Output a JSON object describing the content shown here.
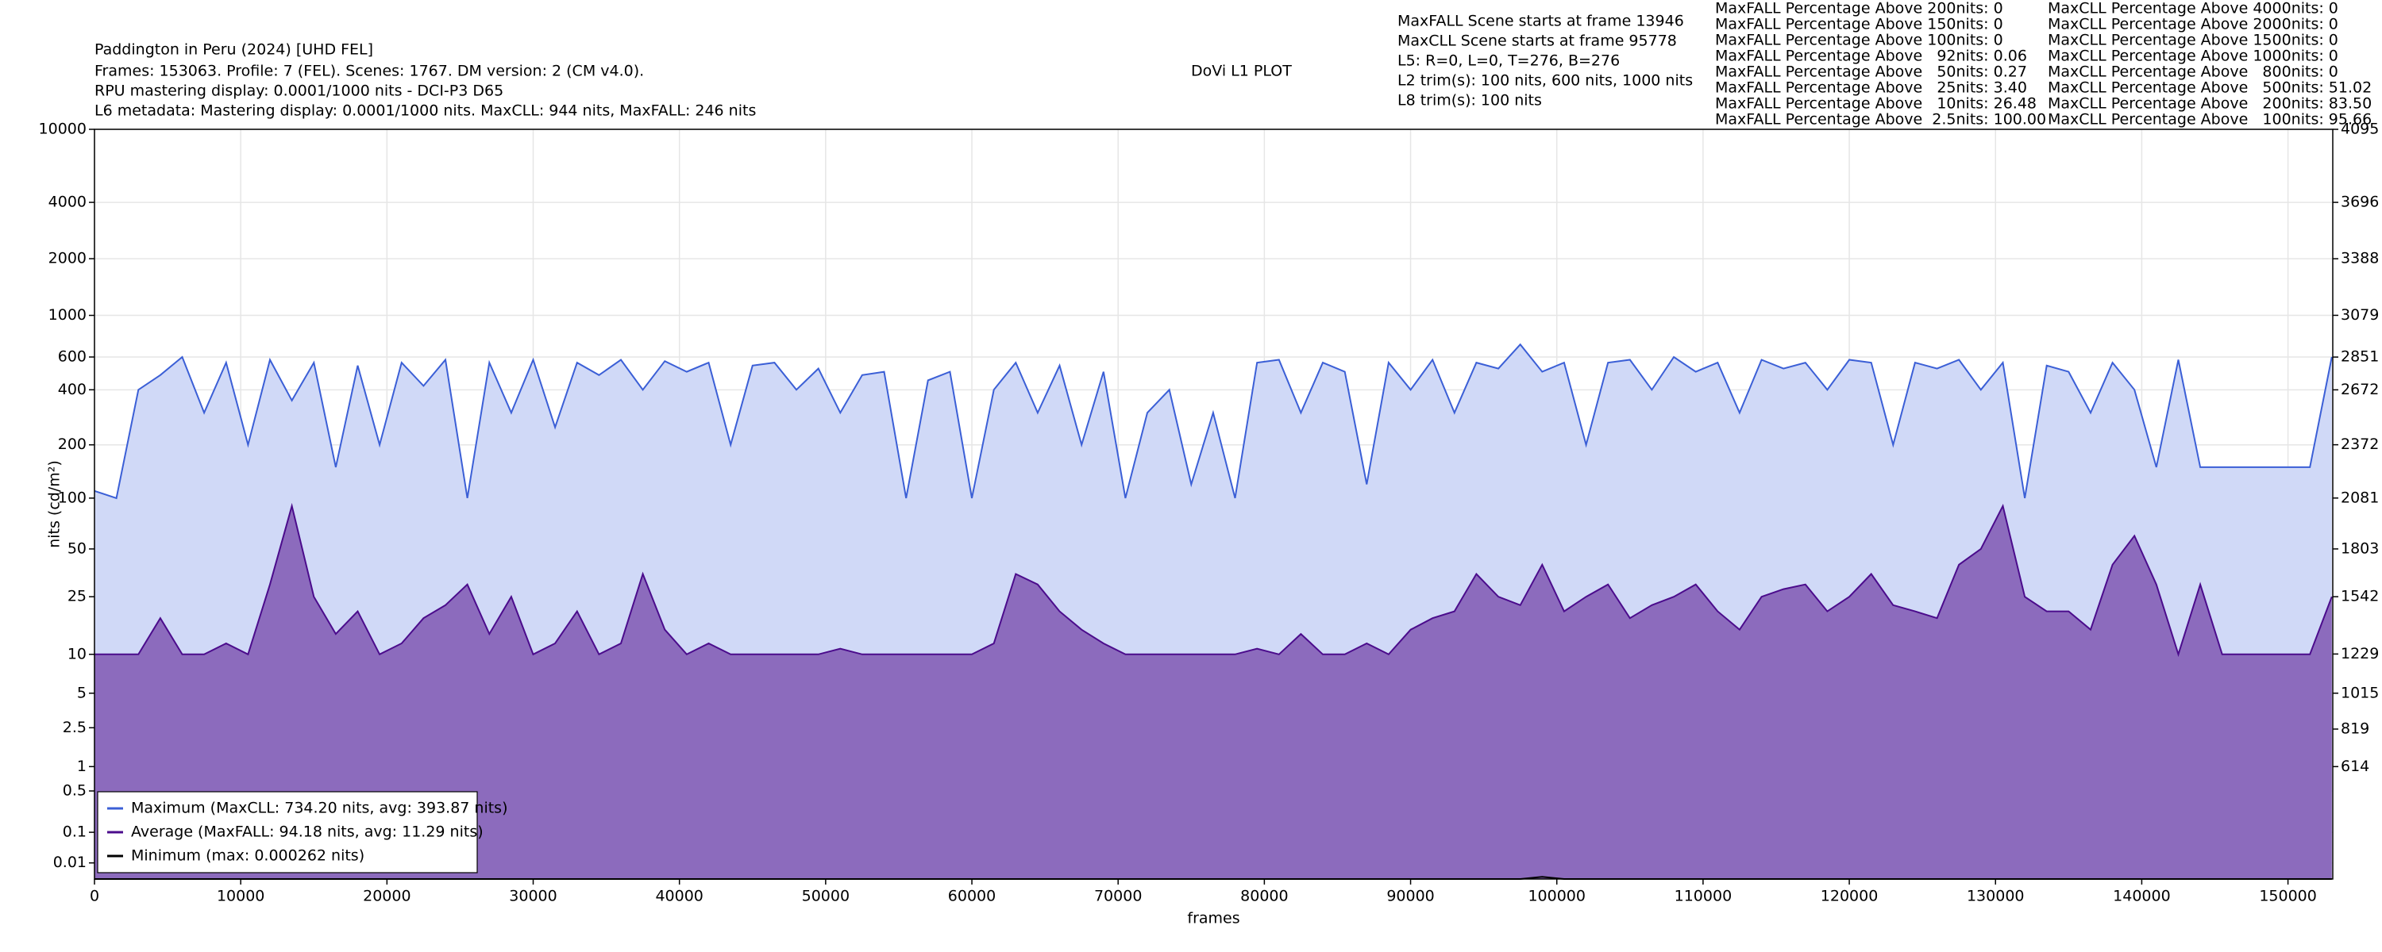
{
  "chart_data": {
    "type": "line",
    "header": [
      "Paddington in Peru (2024) [UHD FEL]",
      "Frames: 153063. Profile: 7 (FEL). Scenes: 1767. DM version: 2 (CM v4.0).",
      "RPU mastering display: 0.0001/1000 nits - DCI-P3 D65",
      "L6 metadata: Mastering display: 0.0001/1000 nits. MaxCLL: 944 nits, MaxFALL: 246 nits"
    ],
    "title": "DoVi L1 PLOT",
    "info": [
      "MaxFALL Scene starts at frame 13946",
      "MaxCLL Scene starts at frame 95778",
      "L5: R=0, L=0, T=276, B=276",
      "L2 trim(s): 100 nits, 600 nits, 1000 nits",
      "L8 trim(s): 100 nits"
    ],
    "stats_maxfall": [
      "MaxFALL Percentage Above 200nits: 0",
      "MaxFALL Percentage Above 150nits: 0",
      "MaxFALL Percentage Above 100nits: 0",
      "MaxFALL Percentage Above   92nits: 0.06",
      "MaxFALL Percentage Above   50nits: 0.27",
      "MaxFALL Percentage Above   25nits: 3.40",
      "MaxFALL Percentage Above   10nits: 26.48",
      "MaxFALL Percentage Above  2.5nits: 100.00"
    ],
    "stats_maxcll": [
      "MaxCLL Percentage Above 4000nits: 0",
      "MaxCLL Percentage Above 2000nits: 0",
      "MaxCLL Percentage Above 1500nits: 0",
      "MaxCLL Percentage Above 1000nits: 0",
      "MaxCLL Percentage Above   800nits: 0",
      "MaxCLL Percentage Above   500nits: 51.02",
      "MaxCLL Percentage Above   200nits: 83.50",
      "MaxCLL Percentage Above   100nits: 95.66"
    ],
    "xlabel": "frames",
    "ylabel": "nits (cd/m²)",
    "yscale": "pq",
    "grid": true,
    "legend": "lower left",
    "xlim": [
      0,
      153063
    ],
    "xticks": [
      0,
      10000,
      20000,
      30000,
      40000,
      50000,
      60000,
      70000,
      80000,
      90000,
      100000,
      110000,
      120000,
      130000,
      140000,
      150000
    ],
    "ylim": [
      0,
      10000
    ],
    "yticks": [
      10000,
      4000,
      2000,
      1000,
      600,
      400,
      200,
      100,
      50,
      25,
      10,
      5,
      2.5,
      1,
      0.5,
      0.1,
      0.01
    ],
    "y2lim": [
      0,
      4095
    ],
    "y2ticks": [
      4095,
      3696,
      3388,
      3079,
      2851,
      2672,
      2372,
      2081,
      1803,
      1542,
      1229,
      1015,
      819,
      614
    ],
    "x": [
      0,
      1500,
      3000,
      4500,
      6000,
      7500,
      9000,
      10500,
      12000,
      13500,
      15000,
      16500,
      18000,
      19500,
      21000,
      22500,
      24000,
      25500,
      27000,
      28500,
      30000,
      31500,
      33000,
      34500,
      36000,
      37500,
      39000,
      40500,
      42000,
      43500,
      45000,
      46500,
      48000,
      49500,
      51000,
      52500,
      54000,
      55500,
      57000,
      58500,
      60000,
      61500,
      63000,
      64500,
      66000,
      67500,
      69000,
      70500,
      72000,
      73500,
      75000,
      76500,
      78000,
      79500,
      81000,
      82500,
      84000,
      85500,
      87000,
      88500,
      90000,
      91500,
      93000,
      94500,
      96000,
      97500,
      99000,
      100500,
      102000,
      103500,
      105000,
      106500,
      108000,
      109500,
      111000,
      112500,
      114000,
      115500,
      117000,
      118500,
      120000,
      121500,
      123000,
      124500,
      126000,
      127500,
      129000,
      130500,
      132000,
      133500,
      135000,
      136500,
      138000,
      139500,
      141000,
      142500,
      144000,
      145500,
      147000,
      148500,
      150000,
      151500,
      153000
    ],
    "series": [
      {
        "name": "Maximum (MaxCLL: 734.20 nits, avg: 393.87 nits)",
        "color": "#3b5fd6",
        "fill": "#d0d9f7",
        "values": [
          110,
          100,
          400,
          480,
          600,
          300,
          560,
          200,
          580,
          350,
          560,
          150,
          540,
          200,
          560,
          420,
          580,
          100,
          560,
          300,
          580,
          250,
          560,
          480,
          580,
          400,
          570,
          500,
          560,
          200,
          540,
          560,
          400,
          520,
          300,
          480,
          500,
          100,
          450,
          500,
          100,
          400,
          560,
          300,
          540,
          200,
          500,
          100,
          300,
          400,
          120,
          300,
          100,
          560,
          580,
          300,
          560,
          500,
          120,
          560,
          400,
          580,
          300,
          560,
          520,
          700,
          500,
          560,
          200,
          560,
          580,
          400,
          600,
          500,
          560,
          300,
          580,
          520,
          560,
          400,
          580,
          560,
          200,
          560,
          520,
          580,
          400,
          560,
          100,
          540,
          500,
          300,
          560,
          400,
          150,
          580,
          150,
          150,
          150,
          150,
          150,
          150,
          600
        ]
      },
      {
        "name": "Average (MaxFALL: 94.18 nits, avg: 11.29 nits)",
        "color": "#4b0c8c",
        "fill": "#8c6bbd",
        "values": [
          10,
          10,
          10,
          18,
          10,
          10,
          12,
          10,
          30,
          90,
          25,
          14,
          20,
          10,
          12,
          18,
          22,
          30,
          14,
          25,
          10,
          12,
          20,
          10,
          12,
          35,
          15,
          10,
          12,
          10,
          10,
          10,
          10,
          10,
          11,
          10,
          10,
          10,
          10,
          10,
          10,
          12,
          35,
          30,
          20,
          15,
          12,
          10,
          10,
          10,
          10,
          10,
          10,
          11,
          10,
          14,
          10,
          10,
          12,
          10,
          15,
          18,
          20,
          35,
          25,
          22,
          40,
          20,
          25,
          30,
          18,
          22,
          25,
          30,
          20,
          15,
          25,
          28,
          30,
          20,
          25,
          35,
          22,
          20,
          18,
          40,
          50,
          90,
          25,
          20,
          20,
          15,
          40,
          60,
          30,
          10,
          30,
          10,
          10,
          10,
          10,
          10,
          25
        ]
      },
      {
        "name": "Minimum (max: 0.000262 nits)",
        "color": "#000000",
        "values": [
          0,
          0,
          0,
          0,
          0,
          0,
          0,
          0,
          0,
          0,
          0,
          0,
          0,
          0,
          0,
          0,
          0,
          0,
          0,
          0,
          0,
          0,
          0,
          0,
          0,
          0,
          0,
          0,
          0,
          0,
          0,
          0,
          0,
          0,
          0,
          0,
          0,
          0,
          0,
          0,
          0,
          0,
          0,
          0,
          0,
          0,
          0,
          0,
          0,
          0,
          0,
          0,
          0,
          0,
          0,
          0,
          0,
          0,
          0,
          0,
          0,
          0,
          0,
          0,
          0,
          0,
          0.000262,
          0,
          0,
          0,
          0,
          0,
          0,
          0,
          0,
          0,
          0,
          0,
          0,
          0,
          0,
          0,
          0,
          0,
          0,
          0,
          0,
          0,
          0,
          0,
          0,
          0,
          0,
          0,
          0,
          0,
          0,
          0,
          0,
          0,
          0,
          0,
          0
        ]
      }
    ]
  }
}
